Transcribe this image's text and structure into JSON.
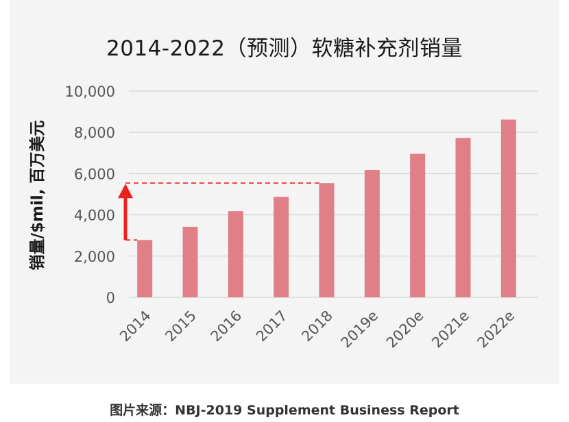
{
  "title": "2014-2022（预测）软糖补充剂销量",
  "caption": "图片来源：NBJ-2019 Supplement Business Report",
  "chart_data": {
    "type": "bar",
    "title": "2014-2022（预测）软糖补充剂销量",
    "xlabel": "",
    "ylabel": "销量/$mil, 百万美元",
    "categories": [
      "2014",
      "2015",
      "2016",
      "2017",
      "2018",
      "2019e",
      "2020e",
      "2021e",
      "2022e"
    ],
    "values": [
      2780,
      3420,
      4180,
      4870,
      5540,
      6180,
      6960,
      7730,
      8620
    ],
    "ylim": [
      0,
      10000
    ],
    "yticks": [
      0,
      2000,
      4000,
      6000,
      8000,
      10000
    ],
    "ytick_labels": [
      "0",
      "2,000",
      "4,000",
      "6,000",
      "8,000",
      "10,000"
    ],
    "grid": true,
    "legend": "none",
    "bar_color": "#e07f88",
    "annotation": {
      "type": "growth-arrow",
      "from_value": 2780,
      "to_value": 5540,
      "arrow_color": "#e8231e",
      "guide_color": "#e8231e"
    }
  }
}
